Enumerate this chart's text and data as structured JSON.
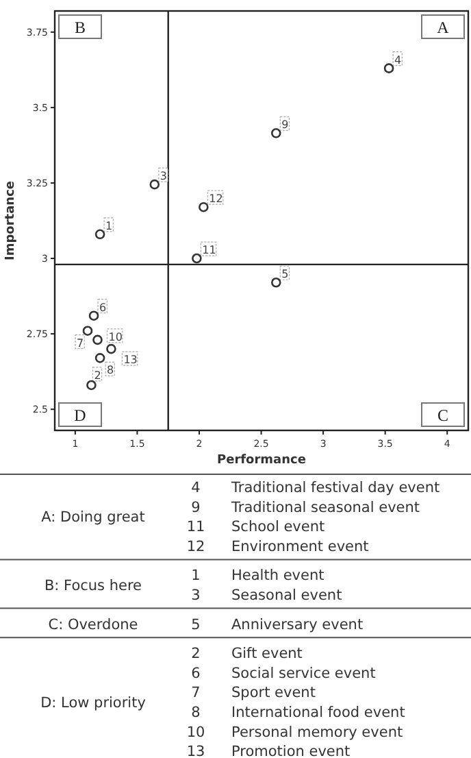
{
  "chart_data": [
    {
      "type": "scatter",
      "xlabel": "Performance",
      "ylabel": "Importance",
      "xlim": [
        0.835,
        4.17
      ],
      "ylim": [
        2.43,
        3.82
      ],
      "xticks": [
        1,
        1.5,
        2,
        2.5,
        3,
        3.5,
        4
      ],
      "yticks": [
        2.5,
        2.75,
        3,
        3.25,
        3.5,
        3.75
      ],
      "grid": false,
      "marker": "circle",
      "series": [
        {
          "color": "#333333",
          "x": [
            3.53,
            2.62,
            1.98,
            2.035,
            1.2,
            1.64,
            2.62,
            1.13,
            1.15,
            1.1,
            1.2,
            1.18,
            1.29
          ],
          "values": [
            3.63,
            3.415,
            3.0,
            3.17,
            3.08,
            3.245,
            2.92,
            2.58,
            2.81,
            2.76,
            2.67,
            2.73,
            2.7
          ]
        }
      ],
      "ref_lines": [
        {
          "axis": "x",
          "value": 1.75
        },
        {
          "axis": "y",
          "value": 2.98
        }
      ],
      "annotations": [
        "A",
        "B",
        "C",
        "D",
        {
          "text": "4",
          "x": 3.53,
          "y": 3.63
        },
        {
          "text": "9",
          "x": 2.62,
          "y": 3.415
        },
        {
          "text": "11",
          "x": 1.98,
          "y": 3.0
        },
        {
          "text": "12",
          "x": 2.035,
          "y": 3.17
        },
        {
          "text": "1",
          "x": 1.2,
          "y": 3.08
        },
        {
          "text": "3",
          "x": 1.64,
          "y": 3.245
        },
        {
          "text": "5",
          "x": 2.62,
          "y": 2.92
        },
        {
          "text": "2",
          "x": 1.13,
          "y": 2.58
        },
        {
          "text": "6",
          "x": 1.15,
          "y": 2.81
        },
        {
          "text": "7",
          "x": 1.1,
          "y": 2.76
        },
        {
          "text": "8",
          "x": 1.2,
          "y": 2.67
        },
        {
          "text": "10",
          "x": 1.18,
          "y": 2.73
        },
        {
          "text": "13",
          "x": 1.29,
          "y": 2.7
        }
      ]
    },
    {
      "type": "other",
      "categories": [
        "A: Doing great",
        "B: Focus here",
        "C: Overdone",
        "D: Low priority"
      ],
      "annotations": [
        "Traditional festival day event",
        "Traditional seasonal event",
        "School event",
        "Environment event",
        "Health event",
        "Seasonal event",
        "Anniversary event",
        "Gift event",
        "Social service event",
        "Sport event",
        "International food event",
        "Personal memory event",
        "Promotion event"
      ]
    }
  ]
}
